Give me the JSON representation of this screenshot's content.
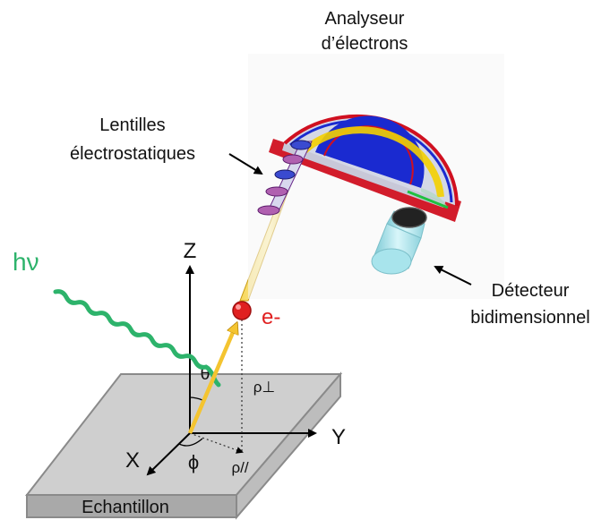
{
  "labels": {
    "analyser_line1": "Analyseur",
    "analyser_line2": "d’électrons",
    "lenses_line1": "Lentilles",
    "lenses_line2": "électrostatiques",
    "detector_line1": "Détecteur",
    "detector_line2": "bidimensionnel",
    "photon": "hν",
    "electron": "e-",
    "sample": "Echantillon",
    "axis_x": "X",
    "axis_y": "Y",
    "axis_z": "Z",
    "theta": "θ",
    "phi": "ϕ",
    "rho_perp": "ρ⊥",
    "rho_par": "ρ//"
  },
  "colors": {
    "photon": "#2db36b",
    "electron": "#e02020",
    "electron_path": "#f4c430",
    "sample_top": "#cfcfcf",
    "sample_side": "#a9a9a9",
    "hemisphere_outer": "#d01020",
    "hemisphere_inner": "#1a2ad0",
    "detector": "#a8e4ec"
  }
}
